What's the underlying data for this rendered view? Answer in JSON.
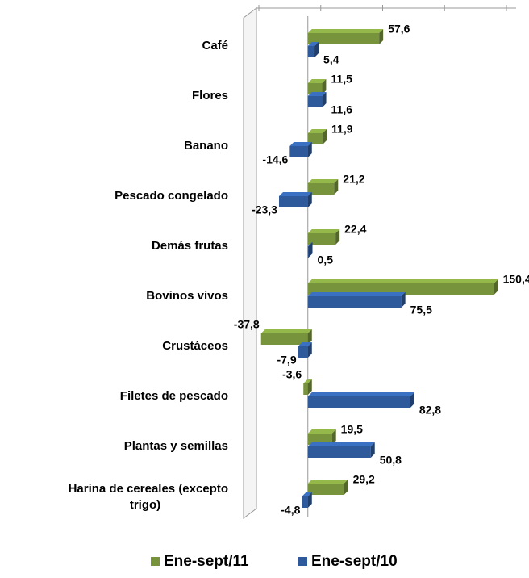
{
  "chart_data": {
    "type": "bar",
    "orientation": "horizontal",
    "categories": [
      "Café",
      "Flores",
      "Banano",
      "Pescado  congelado",
      "Demás frutas",
      "Bovinos vivos",
      "Crustáceos",
      "Filetes de pescado",
      "Plantas y semillas",
      "Harina de cereales  (excepto trigo)"
    ],
    "series": [
      {
        "name": "Ene-sept/11",
        "color": "#77933c",
        "values": [
          57.6,
          11.5,
          11.9,
          21.2,
          22.4,
          150.4,
          -37.8,
          -3.6,
          19.5,
          29.2
        ],
        "value_labels": [
          "57,6",
          "11,5",
          "11,9",
          "21,2",
          "22,4",
          "150,4",
          "-37,8",
          "-3,6",
          "19,5",
          "29,2"
        ]
      },
      {
        "name": "Ene-sept/10",
        "color": "#2e5a9c",
        "values": [
          5.4,
          11.6,
          -14.6,
          -23.3,
          0.5,
          75.5,
          -7.9,
          82.8,
          50.8,
          -4.8
        ],
        "value_labels": [
          "5,4",
          "11,6",
          "-14,6",
          "-23,3",
          "0,5",
          "75,5",
          "-7,9",
          "82,8",
          "50,8",
          "-4,8"
        ]
      }
    ],
    "xlim": [
      -50,
      150
    ],
    "xticks": [
      -50,
      0,
      50,
      100,
      150
    ],
    "legend": "bottom"
  }
}
